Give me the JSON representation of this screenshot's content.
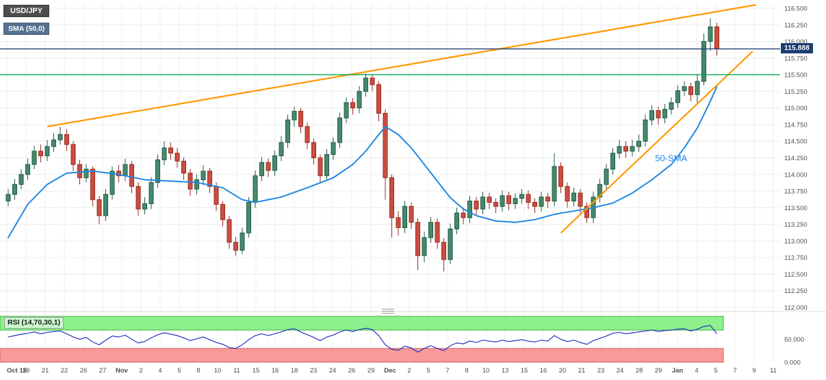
{
  "legend": {
    "symbol": "USD/JPY",
    "indicator": "SMA (50,0)"
  },
  "price_axis": {
    "current_price_label": "115.888"
  },
  "chart_data": [
    {
      "type": "candlestick",
      "title": "USD/JPY",
      "xlabel": "",
      "ylabel": "",
      "grid": true,
      "ylim": [
        112.0,
        116.5
      ],
      "y_ticks": [
        116.5,
        116.25,
        116.0,
        115.75,
        115.5,
        115.25,
        115.0,
        114.75,
        114.5,
        114.25,
        114.0,
        113.75,
        113.5,
        113.25,
        113.0,
        112.75,
        112.5,
        112.25,
        112.0
      ],
      "x_tick_labels": [
        "Oct 15",
        "19",
        "21",
        "22",
        "26",
        "27",
        "Nov",
        "2",
        "4",
        "5",
        "8",
        "10",
        "11",
        "15",
        "16",
        "18",
        "23",
        "24",
        "26",
        "29",
        "Dec",
        "2",
        "5",
        "7",
        "8",
        "10",
        "13",
        "15",
        "16",
        "20",
        "21",
        "23",
        "24",
        "28",
        "29",
        "Jan",
        "4",
        "5",
        "7",
        "9",
        "11"
      ],
      "up_color": "#47896c",
      "up_border": "#1f5a42",
      "down_color": "#c94f41",
      "down_border": "#99291d",
      "candles_ohlc": [
        [
          113.6,
          113.78,
          113.52,
          113.7
        ],
        [
          113.7,
          113.93,
          113.62,
          113.85
        ],
        [
          113.85,
          114.08,
          113.78,
          114.0
        ],
        [
          114.0,
          114.24,
          113.92,
          114.15
        ],
        [
          114.15,
          114.43,
          114.08,
          114.35
        ],
        [
          114.35,
          114.45,
          114.18,
          114.28
        ],
        [
          114.28,
          114.52,
          114.2,
          114.42
        ],
        [
          114.42,
          114.62,
          114.34,
          114.52
        ],
        [
          114.52,
          114.72,
          114.45,
          114.6
        ],
        [
          114.6,
          114.68,
          114.35,
          114.45
        ],
        [
          114.45,
          114.5,
          114.05,
          114.15
        ],
        [
          114.15,
          114.22,
          113.85,
          113.95
        ],
        [
          113.95,
          114.16,
          113.88,
          114.08
        ],
        [
          114.08,
          114.12,
          113.52,
          113.62
        ],
        [
          113.62,
          113.68,
          113.25,
          113.38
        ],
        [
          113.38,
          113.78,
          113.3,
          113.7
        ],
        [
          113.7,
          114.12,
          113.62,
          114.05
        ],
        [
          114.05,
          114.14,
          113.88,
          113.98
        ],
        [
          113.98,
          114.24,
          113.9,
          114.15
        ],
        [
          114.15,
          114.2,
          113.72,
          113.82
        ],
        [
          113.82,
          113.88,
          113.38,
          113.48
        ],
        [
          113.48,
          113.66,
          113.4,
          113.56
        ],
        [
          113.56,
          113.96,
          113.48,
          113.88
        ],
        [
          113.88,
          114.3,
          113.8,
          114.22
        ],
        [
          114.22,
          114.5,
          114.14,
          114.4
        ],
        [
          114.4,
          114.48,
          114.22,
          114.32
        ],
        [
          114.32,
          114.4,
          114.1,
          114.2
        ],
        [
          114.2,
          114.26,
          113.92,
          114.02
        ],
        [
          114.02,
          114.08,
          113.68,
          113.78
        ],
        [
          113.78,
          114.0,
          113.7,
          113.92
        ],
        [
          113.92,
          114.14,
          113.84,
          114.05
        ],
        [
          114.05,
          114.1,
          113.72,
          113.82
        ],
        [
          113.82,
          113.88,
          113.45,
          113.55
        ],
        [
          113.55,
          113.6,
          113.22,
          113.32
        ],
        [
          113.32,
          113.38,
          112.88,
          112.98
        ],
        [
          112.98,
          113.06,
          112.78,
          112.86
        ],
        [
          112.86,
          113.2,
          112.8,
          113.12
        ],
        [
          113.12,
          113.66,
          113.05,
          113.58
        ],
        [
          113.58,
          114.06,
          113.5,
          113.98
        ],
        [
          113.98,
          114.26,
          113.9,
          114.18
        ],
        [
          114.18,
          114.24,
          113.96,
          114.06
        ],
        [
          114.06,
          114.36,
          113.98,
          114.28
        ],
        [
          114.28,
          114.58,
          114.2,
          114.48
        ],
        [
          114.48,
          114.9,
          114.4,
          114.82
        ],
        [
          114.82,
          115.02,
          114.72,
          114.95
        ],
        [
          114.95,
          115.0,
          114.62,
          114.72
        ],
        [
          114.72,
          114.78,
          114.38,
          114.48
        ],
        [
          114.48,
          114.54,
          114.15,
          114.25
        ],
        [
          114.25,
          114.3,
          113.88,
          113.98
        ],
        [
          113.98,
          114.38,
          113.9,
          114.3
        ],
        [
          114.3,
          114.56,
          114.22,
          114.48
        ],
        [
          114.48,
          114.93,
          114.4,
          114.85
        ],
        [
          114.85,
          115.16,
          114.77,
          115.08
        ],
        [
          115.08,
          115.15,
          114.9,
          115.0
        ],
        [
          115.0,
          115.33,
          114.92,
          115.25
        ],
        [
          115.25,
          115.52,
          115.17,
          115.45
        ],
        [
          115.45,
          115.5,
          115.25,
          115.35
        ],
        [
          115.35,
          115.4,
          114.8,
          114.92
        ],
        [
          114.92,
          114.98,
          113.62,
          113.95
        ],
        [
          113.95,
          114.0,
          113.05,
          113.35
        ],
        [
          113.35,
          113.45,
          113.08,
          113.2
        ],
        [
          113.2,
          113.6,
          113.12,
          113.52
        ],
        [
          113.52,
          113.58,
          113.18,
          113.28
        ],
        [
          113.28,
          113.34,
          112.56,
          112.78
        ],
        [
          112.78,
          113.14,
          112.68,
          113.05
        ],
        [
          113.05,
          113.36,
          112.97,
          113.28
        ],
        [
          113.28,
          113.34,
          112.88,
          112.98
        ],
        [
          112.98,
          113.04,
          112.54,
          112.72
        ],
        [
          112.72,
          113.26,
          112.65,
          113.18
        ],
        [
          113.18,
          113.5,
          113.1,
          113.42
        ],
        [
          113.42,
          113.5,
          113.25,
          113.35
        ],
        [
          113.35,
          113.68,
          113.27,
          113.6
        ],
        [
          113.6,
          113.66,
          113.38,
          113.48
        ],
        [
          113.48,
          113.74,
          113.4,
          113.66
        ],
        [
          113.66,
          113.72,
          113.48,
          113.58
        ],
        [
          113.58,
          113.64,
          113.42,
          113.52
        ],
        [
          113.52,
          113.76,
          113.44,
          113.68
        ],
        [
          113.68,
          113.74,
          113.46,
          113.56
        ],
        [
          113.56,
          113.72,
          113.48,
          113.64
        ],
        [
          113.64,
          113.78,
          113.56,
          113.7
        ],
        [
          113.7,
          113.76,
          113.48,
          113.58
        ],
        [
          113.58,
          113.64,
          113.42,
          113.52
        ],
        [
          113.52,
          113.74,
          113.44,
          113.66
        ],
        [
          113.66,
          113.72,
          113.5,
          113.6
        ],
        [
          113.6,
          114.32,
          113.52,
          114.12
        ],
        [
          114.12,
          114.18,
          113.72,
          113.82
        ],
        [
          113.82,
          113.88,
          113.5,
          113.6
        ],
        [
          113.6,
          113.8,
          113.52,
          113.72
        ],
        [
          113.72,
          113.78,
          113.42,
          113.52
        ],
        [
          113.52,
          113.58,
          113.27,
          113.35
        ],
        [
          113.35,
          113.74,
          113.27,
          113.66
        ],
        [
          113.66,
          113.93,
          113.58,
          113.85
        ],
        [
          113.85,
          114.16,
          113.77,
          114.08
        ],
        [
          114.08,
          114.4,
          114.0,
          114.32
        ],
        [
          114.32,
          114.52,
          114.24,
          114.42
        ],
        [
          114.42,
          114.5,
          114.25,
          114.35
        ],
        [
          114.35,
          114.52,
          114.27,
          114.42
        ],
        [
          114.42,
          114.6,
          114.34,
          114.5
        ],
        [
          114.5,
          114.9,
          114.42,
          114.82
        ],
        [
          114.82,
          115.04,
          114.74,
          114.96
        ],
        [
          114.96,
          115.02,
          114.75,
          114.85
        ],
        [
          114.85,
          115.06,
          114.77,
          114.98
        ],
        [
          114.98,
          115.16,
          114.9,
          115.08
        ],
        [
          115.08,
          115.34,
          115.0,
          115.26
        ],
        [
          115.26,
          115.4,
          115.18,
          115.32
        ],
        [
          115.32,
          115.38,
          115.1,
          115.2
        ],
        [
          115.2,
          115.5,
          115.06,
          115.4
        ],
        [
          115.4,
          116.12,
          115.34,
          116.0
        ],
        [
          116.0,
          116.35,
          115.86,
          116.22
        ],
        [
          116.22,
          116.28,
          115.79,
          115.888
        ]
      ],
      "overlays": {
        "sma50": {
          "label": "50-SMA",
          "color": "#1e88e5",
          "points": [
            [
              0,
              113.05
            ],
            [
              3,
              113.55
            ],
            [
              6,
              113.85
            ],
            [
              9,
              114.02
            ],
            [
              13,
              114.05
            ],
            [
              17,
              114.0
            ],
            [
              21,
              113.92
            ],
            [
              25,
              113.9
            ],
            [
              29,
              113.88
            ],
            [
              33,
              113.8
            ],
            [
              36,
              113.62
            ],
            [
              38,
              113.58
            ],
            [
              42,
              113.66
            ],
            [
              46,
              113.8
            ],
            [
              50,
              113.95
            ],
            [
              53,
              114.15
            ],
            [
              55,
              114.35
            ],
            [
              57,
              114.6
            ],
            [
              58,
              114.72
            ],
            [
              60,
              114.6
            ],
            [
              62,
              114.4
            ],
            [
              64,
              114.15
            ],
            [
              66,
              113.9
            ],
            [
              68,
              113.65
            ],
            [
              70,
              113.48
            ],
            [
              72,
              113.38
            ],
            [
              75,
              113.3
            ],
            [
              78,
              113.28
            ],
            [
              81,
              113.32
            ],
            [
              84,
              113.4
            ],
            [
              87,
              113.45
            ],
            [
              90,
              113.5
            ],
            [
              93,
              113.57
            ],
            [
              96,
              113.72
            ],
            [
              99,
              113.92
            ],
            [
              102,
              114.15
            ],
            [
              104,
              114.4
            ],
            [
              106,
              114.7
            ],
            [
              107,
              114.9
            ],
            [
              108,
              115.1
            ],
            [
              109,
              115.32
            ]
          ]
        },
        "trendlines": [
          {
            "name": "rising-resistance",
            "color": "#ff9800",
            "from": [
              6,
              114.72
            ],
            "to": [
              115,
              116.55
            ]
          },
          {
            "name": "rising-support",
            "color": "#ff9800",
            "from": [
              85,
              113.12
            ],
            "to": [
              114.5,
              115.85
            ]
          }
        ],
        "h_lines": [
          {
            "name": "current-price",
            "price": 115.888,
            "color": "#1d3e71",
            "label": "115.888"
          },
          {
            "name": "horizontal-support",
            "price": 115.5,
            "color": "#00a651"
          }
        ],
        "annotation": {
          "text": "50-SMA",
          "at": [
            99.5,
            114.2
          ],
          "color": "#1e88e5"
        }
      }
    },
    {
      "type": "line",
      "title": "RSI (14,70,30,1)",
      "ylim": [
        0,
        100
      ],
      "line_color": "#2433c0",
      "bands": {
        "overbought": {
          "range": [
            70,
            100
          ],
          "color": "#8df08d",
          "border": "#3cb83c"
        },
        "oversold": {
          "range": [
            0,
            30
          ],
          "color": "#f99a9a",
          "border": "#d05c5c"
        }
      },
      "y_tick_labels": [
        {
          "value": 50,
          "label": "50.000"
        },
        {
          "value": 0,
          "label": "0.000"
        }
      ],
      "values": [
        55,
        58,
        61,
        63,
        66,
        62,
        65,
        67,
        68,
        62,
        55,
        50,
        54,
        44,
        38,
        48,
        57,
        55,
        59,
        50,
        42,
        45,
        53,
        60,
        64,
        61,
        58,
        53,
        47,
        51,
        55,
        49,
        43,
        39,
        32,
        30,
        38,
        49,
        58,
        62,
        58,
        62,
        66,
        71,
        73,
        66,
        60,
        54,
        47,
        55,
        59,
        66,
        70,
        67,
        71,
        74,
        71,
        58,
        38,
        28,
        26,
        35,
        31,
        22,
        30,
        36,
        30,
        25,
        36,
        42,
        40,
        46,
        43,
        48,
        46,
        44,
        48,
        45,
        47,
        49,
        46,
        44,
        48,
        46,
        58,
        50,
        45,
        48,
        43,
        39,
        47,
        52,
        57,
        63,
        65,
        62,
        64,
        66,
        68,
        70,
        67,
        69,
        70,
        72,
        73,
        68,
        72,
        78,
        80,
        62
      ]
    }
  ]
}
